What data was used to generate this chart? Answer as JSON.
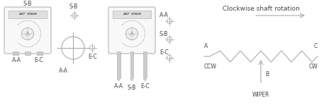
{
  "bg_color": "#ffffff",
  "line_color": "#aaaaaa",
  "text_color": "#444444",
  "title": "Clockwise shaft rotation",
  "label_A": "A",
  "label_B": "B",
  "label_C": "C",
  "label_CCW": "CCW",
  "label_CW": "CW",
  "label_WIPER": "WIPER",
  "label_AA": "A-A",
  "label_EC": "E-C",
  "label_SB": "S-B",
  "font_size": 5.5
}
